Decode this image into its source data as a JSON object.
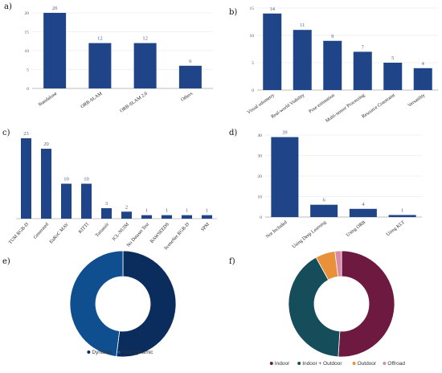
{
  "panels": [
    {
      "id": "a",
      "label": "a)"
    },
    {
      "id": "b",
      "label": "b)"
    },
    {
      "id": "c",
      "label": "c)"
    },
    {
      "id": "d",
      "label": "d)"
    },
    {
      "id": "e",
      "label": "e)"
    },
    {
      "id": "f",
      "label": "f)"
    }
  ],
  "colors": {
    "bar": "#1f4588",
    "grid": "#e3e3e3",
    "axis": "#888888",
    "data_label": "#4a5a8a"
  },
  "chart_data": [
    {
      "id": "a",
      "type": "bar",
      "categories": [
        "Standalone",
        "ORB-SLAM",
        "ORB-SLAM 2.0",
        "Others"
      ],
      "values": [
        20,
        12,
        12,
        6
      ],
      "yticks": [
        0,
        5,
        10,
        15,
        20
      ],
      "ylim": [
        0,
        20
      ],
      "grid": true
    },
    {
      "id": "b",
      "type": "bar",
      "categories": [
        "Visual odometry",
        "Real-world Viability",
        "Pose estimation",
        "Multi-sensor Processing",
        "Resource Constraint",
        "Versatility"
      ],
      "values": [
        14,
        11,
        9,
        7,
        5,
        4
      ],
      "yticks": [
        0,
        5,
        10,
        15
      ],
      "ylim": [
        0,
        15
      ],
      "grid": true
    },
    {
      "id": "c",
      "type": "bar",
      "categories": [
        "TUM RGB-D",
        "Generated",
        "EuRoC MAV",
        "KITTI",
        "Tartanair",
        "ICL-NUIM",
        "No Dataset Test",
        "BAWSEEDS",
        "SceneNet RGB-D",
        "SPM"
      ],
      "values": [
        23,
        20,
        10,
        10,
        3,
        2,
        1,
        1,
        1,
        1
      ],
      "yticks": [],
      "ylim": [
        0,
        23
      ],
      "grid": false
    },
    {
      "id": "d",
      "type": "bar",
      "categories": [
        "Not Included",
        "Using Deep Learning",
        "Using ORB",
        "Using KLT"
      ],
      "values": [
        39,
        6,
        4,
        1
      ],
      "yticks": [
        0,
        10,
        20,
        30,
        40
      ],
      "ylim": [
        0,
        40
      ],
      "grid": true
    },
    {
      "id": "e",
      "type": "pie",
      "donut": true,
      "labels": [
        "Dynamic",
        "Non-dynamic"
      ],
      "values": [
        52,
        48
      ],
      "colors": [
        "#0b2d5e",
        "#104f8f"
      ],
      "legend": "bottom"
    },
    {
      "id": "f",
      "type": "pie",
      "donut": true,
      "labels": [
        "Indoor",
        "Indoor + Outdoor",
        "Outdoor",
        "Offroad"
      ],
      "values": [
        51,
        41,
        6,
        2
      ],
      "colors": [
        "#6e1a40",
        "#154e5a",
        "#e9913a",
        "#d98aa6"
      ],
      "legend": "bottom"
    }
  ]
}
